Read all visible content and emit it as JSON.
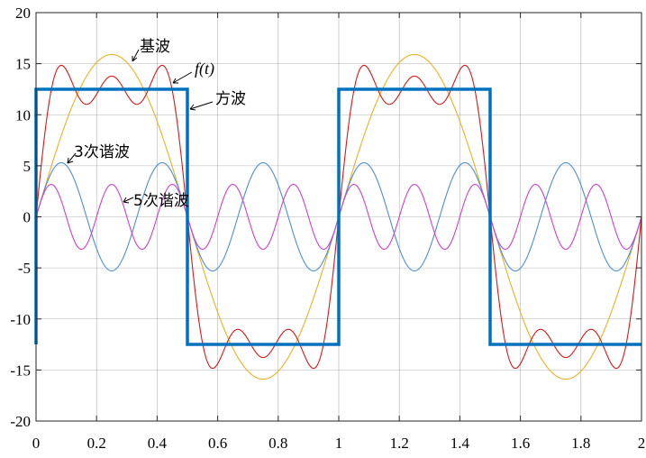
{
  "chart_data": {
    "type": "line",
    "title": "",
    "xlabel": "",
    "ylabel": "",
    "xlim": [
      0,
      2
    ],
    "ylim": [
      -20,
      20
    ],
    "grid": true,
    "x_ticks": [
      "0",
      "0.2",
      "0.4",
      "0.6",
      "0.8",
      "1",
      "1.2",
      "1.4",
      "1.6",
      "1.8",
      "2"
    ],
    "x_tick_values": [
      0,
      0.2,
      0.4,
      0.6,
      0.8,
      1.0,
      1.2,
      1.4,
      1.6,
      1.8,
      2.0
    ],
    "y_ticks": [
      "20",
      "15",
      "10",
      "5",
      "0",
      "-5",
      "-10",
      "-15",
      "-20"
    ],
    "y_tick_values": [
      20,
      15,
      10,
      5,
      0,
      -5,
      -10,
      -15,
      -20
    ],
    "series": [
      {
        "name": "方波",
        "color": "#0072bd",
        "style": "square",
        "amplitude": 12.5,
        "period": 1,
        "points": [
          [
            0,
            -12.5
          ],
          [
            0,
            12.5
          ],
          [
            0.5,
            12.5
          ],
          [
            0.5,
            -12.5
          ],
          [
            1,
            -12.5
          ],
          [
            1,
            12.5
          ],
          [
            1.5,
            12.5
          ],
          [
            1.5,
            -12.5
          ],
          [
            2,
            -12.5
          ]
        ]
      },
      {
        "name": "基波",
        "color": "#edb120",
        "style": "sine",
        "amplitude": 15.9,
        "harmonic": 1,
        "period": 1
      },
      {
        "name": "3次谐波",
        "color": "#4d8fd6",
        "style": "sine",
        "amplitude": 5.3,
        "harmonic": 3,
        "period": 1
      },
      {
        "name": "5次谐波",
        "color": "#d040d0",
        "style": "sine",
        "amplitude": 3.18,
        "harmonic": 5,
        "period": 1
      },
      {
        "name": "f(t)",
        "color": "#d81818",
        "style": "sum",
        "components": [
          "基波",
          "3次谐波",
          "5次谐波"
        ]
      }
    ],
    "annotations": [
      {
        "text": "基波",
        "target": "基波"
      },
      {
        "text": "f(t)",
        "target": "f(t)"
      },
      {
        "text": "方波",
        "target": "方波"
      },
      {
        "text": "3次谐波",
        "target": "3次谐波"
      },
      {
        "text": "5次谐波",
        "target": "5次谐波"
      }
    ]
  }
}
